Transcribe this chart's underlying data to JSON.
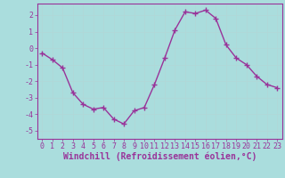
{
  "x": [
    0,
    1,
    2,
    3,
    4,
    5,
    6,
    7,
    8,
    9,
    10,
    11,
    12,
    13,
    14,
    15,
    16,
    17,
    18,
    19,
    20,
    21,
    22,
    23
  ],
  "y": [
    -0.3,
    -0.7,
    -1.2,
    -2.7,
    -3.4,
    -3.7,
    -3.6,
    -4.3,
    -4.6,
    -3.8,
    -3.6,
    -2.2,
    -0.6,
    1.1,
    2.2,
    2.1,
    2.3,
    1.8,
    0.2,
    -0.6,
    -1.0,
    -1.7,
    -2.2,
    -2.4
  ],
  "line_color": "#993399",
  "marker": "+",
  "marker_size": 4,
  "bg_color": "#aadddd",
  "grid_color": "#cceeee",
  "xlabel": "Windchill (Refroidissement éolien,°C)",
  "xlabel_color": "#993399",
  "tick_color": "#993399",
  "xlim": [
    -0.5,
    23.5
  ],
  "ylim": [
    -5.5,
    2.7
  ],
  "yticks": [
    -5,
    -4,
    -3,
    -2,
    -1,
    0,
    1,
    2
  ],
  "xticks": [
    0,
    1,
    2,
    3,
    4,
    5,
    6,
    7,
    8,
    9,
    10,
    11,
    12,
    13,
    14,
    15,
    16,
    17,
    18,
    19,
    20,
    21,
    22,
    23
  ],
  "xtick_labels": [
    "0",
    "1",
    "2",
    "3",
    "4",
    "5",
    "6",
    "7",
    "8",
    "9",
    "10",
    "11",
    "12",
    "13",
    "14",
    "15",
    "16",
    "17",
    "18",
    "19",
    "20",
    "21",
    "22",
    "23"
  ],
  "ytick_labels": [
    "-5",
    "-4",
    "-3",
    "-2",
    "-1",
    "0",
    "1",
    "2"
  ],
  "spine_color": "#993399",
  "font_size": 6,
  "xlabel_font_size": 7,
  "linewidth": 1.0
}
